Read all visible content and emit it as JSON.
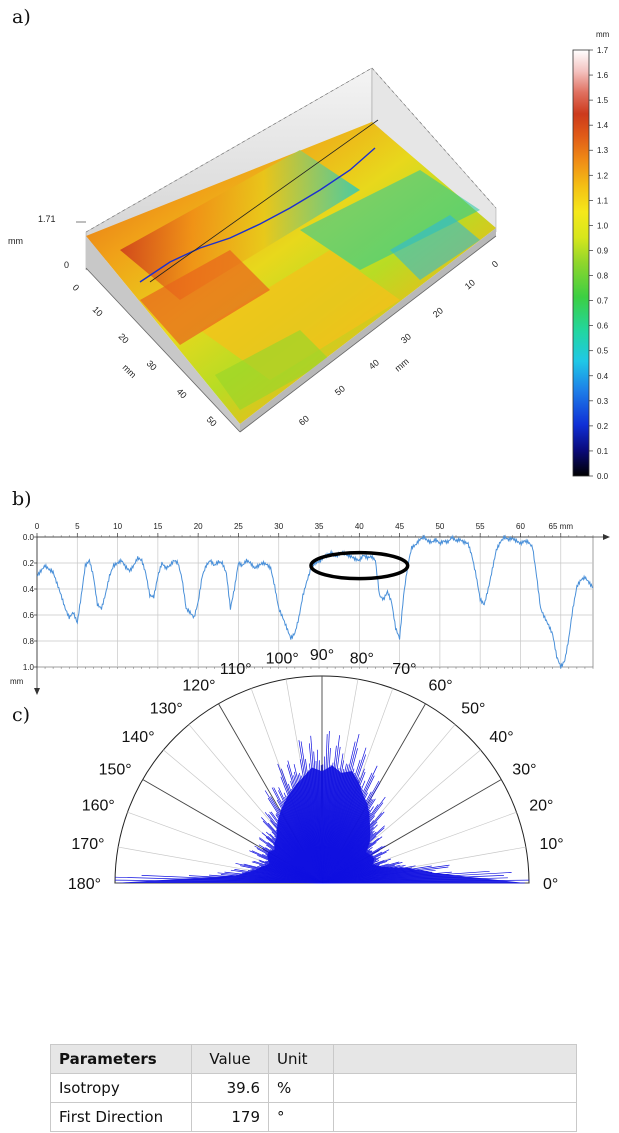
{
  "panels": {
    "a": "a)",
    "b": "b)",
    "c": "c)"
  },
  "colors": {
    "profile_line": "#4a90d9",
    "rose_fill": "#1010e0",
    "grid": "#bdbdbd",
    "highlight_ring": "#000000"
  },
  "chart_data": [
    {
      "type": "heatmap",
      "panel": "a",
      "description_type": "3d-surface",
      "z_max_label": "1.71",
      "z_axis_unit": "mm",
      "z_ticks": [
        "0",
        "1.71"
      ],
      "x_axis_unit": "mm",
      "x_ticks": [
        "0",
        "10",
        "20",
        "30",
        "40",
        "50"
      ],
      "y_axis_unit": "mm",
      "y_ticks": [
        "10",
        "20",
        "30",
        "40",
        "50",
        "60"
      ],
      "colorbar": {
        "unit": "mm",
        "range": [
          0.0,
          1.7
        ],
        "ticks": [
          "1.7",
          "1.6",
          "1.5",
          "1.4",
          "1.3",
          "1.2",
          "1.1",
          "1.0",
          "0.9",
          "0.8",
          "0.7",
          "0.6",
          "0.5",
          "0.4",
          "0.3",
          "0.2",
          "0.1",
          "0.0"
        ],
        "colors": [
          "#000000",
          "#0a0a7a",
          "#0f2fd6",
          "#1e7ee8",
          "#1fc8e6",
          "#22d6a0",
          "#3ccf43",
          "#8fd62c",
          "#d7e61c",
          "#f5e81a",
          "#f4c014",
          "#f08d16",
          "#e05a18",
          "#cc3a1c",
          "#e07060",
          "#f4c2c0",
          "#ffffff"
        ]
      }
    },
    {
      "type": "line",
      "panel": "b",
      "x_unit": "mm",
      "y_unit": "mm",
      "x_ticks": [
        "0",
        "5",
        "10",
        "15",
        "20",
        "25",
        "30",
        "35",
        "40",
        "45",
        "50",
        "55",
        "60",
        "65 mm"
      ],
      "y_ticks": [
        "0.0",
        "0.2",
        "0.4",
        "0.6",
        "0.8",
        "1.0"
      ],
      "xlim": [
        0,
        69
      ],
      "ylim": [
        0.0,
        1.0
      ],
      "y_inverted": true,
      "highlight_region": {
        "x": [
          34,
          46
        ],
        "y": [
          0.12,
          0.32
        ]
      },
      "series": [
        {
          "x": [
            0,
            0.5,
            1,
            1.5,
            2,
            2.5,
            3,
            3.5,
            4,
            4.5,
            5,
            5.5,
            6,
            6.5,
            7,
            7.5,
            8,
            8.5,
            9,
            9.5,
            10,
            10.5,
            11,
            11.5,
            12,
            12.5,
            13,
            13.5,
            14,
            14.5,
            15,
            15.5,
            16,
            16.5,
            17,
            17.5,
            18,
            18.5,
            19,
            19.5,
            20,
            20.5,
            21,
            21.5,
            22,
            22.5,
            23,
            23.5,
            24,
            24.5,
            25,
            25.5,
            26,
            26.5,
            27,
            27.5,
            28,
            28.5,
            29,
            29.5,
            30,
            30.5,
            31,
            31.5,
            32,
            32.5,
            33,
            33.5,
            34,
            34.5,
            35,
            35.5,
            36,
            36.5,
            37,
            37.5,
            38,
            38.5,
            39,
            39.5,
            40,
            40.5,
            41,
            41.5,
            42,
            42.5,
            43,
            43.5,
            44,
            44.5,
            45,
            45.5,
            46,
            46.5,
            47,
            47.5,
            48,
            48.5,
            49,
            49.5,
            50,
            50.5,
            51,
            51.5,
            52,
            52.5,
            53,
            53.5,
            54,
            54.5,
            55,
            55.5,
            56,
            56.5,
            57,
            57.5,
            58,
            58.5,
            59,
            59.5,
            60,
            60.5,
            61,
            61.5,
            62,
            62.5,
            63,
            63.5,
            64,
            64.5,
            65,
            65.5,
            66,
            66.5,
            67,
            67.5,
            68,
            68.5,
            69
          ],
          "y": [
            0.3,
            0.26,
            0.22,
            0.25,
            0.27,
            0.36,
            0.45,
            0.55,
            0.62,
            0.58,
            0.66,
            0.45,
            0.22,
            0.18,
            0.3,
            0.52,
            0.55,
            0.44,
            0.3,
            0.22,
            0.2,
            0.18,
            0.23,
            0.26,
            0.22,
            0.16,
            0.18,
            0.28,
            0.45,
            0.46,
            0.3,
            0.2,
            0.24,
            0.22,
            0.18,
            0.2,
            0.32,
            0.55,
            0.58,
            0.62,
            0.5,
            0.3,
            0.22,
            0.18,
            0.22,
            0.19,
            0.2,
            0.28,
            0.55,
            0.4,
            0.2,
            0.22,
            0.18,
            0.2,
            0.24,
            0.22,
            0.2,
            0.21,
            0.24,
            0.38,
            0.55,
            0.62,
            0.7,
            0.78,
            0.74,
            0.62,
            0.45,
            0.34,
            0.24,
            0.2,
            0.19,
            0.16,
            0.14,
            0.12,
            0.15,
            0.13,
            0.12,
            0.14,
            0.15,
            0.17,
            0.18,
            0.14,
            0.16,
            0.15,
            0.18,
            0.45,
            0.48,
            0.42,
            0.5,
            0.7,
            0.78,
            0.45,
            0.22,
            0.08,
            0.06,
            0.02,
            0.0,
            0.03,
            0.04,
            0.02,
            0.05,
            0.03,
            0.04,
            0.0,
            0.03,
            0.02,
            0.04,
            0.05,
            0.15,
            0.3,
            0.48,
            0.52,
            0.4,
            0.25,
            0.1,
            0.04,
            0.0,
            0.02,
            0.01,
            0.03,
            0.05,
            0.03,
            0.04,
            0.08,
            0.3,
            0.55,
            0.62,
            0.68,
            0.75,
            0.92,
            1.0,
            0.95,
            0.78,
            0.55,
            0.38,
            0.33,
            0.31,
            0.35,
            0.39
          ]
        }
      ]
    },
    {
      "type": "bar",
      "panel": "c",
      "description_type": "polar-rose",
      "angle_ticks": [
        "0°",
        "10°",
        "20°",
        "30°",
        "40°",
        "50°",
        "60°",
        "70°",
        "80°",
        "90°",
        "100°",
        "110°",
        "120°",
        "130°",
        "140°",
        "150°",
        "160°",
        "170°",
        "180°"
      ],
      "theta_range": [
        0,
        180
      ],
      "r_max": 1.0,
      "envelope": {
        "theta": [
          0,
          5,
          10,
          15,
          20,
          25,
          30,
          35,
          40,
          45,
          50,
          55,
          60,
          65,
          70,
          75,
          80,
          85,
          90,
          95,
          100,
          105,
          110,
          115,
          120,
          125,
          130,
          135,
          140,
          145,
          150,
          155,
          160,
          165,
          170,
          175,
          180
        ],
        "r": [
          0.98,
          0.55,
          0.42,
          0.3,
          0.26,
          0.28,
          0.27,
          0.26,
          0.3,
          0.33,
          0.36,
          0.4,
          0.44,
          0.47,
          0.52,
          0.56,
          0.54,
          0.57,
          0.54,
          0.56,
          0.52,
          0.49,
          0.46,
          0.43,
          0.4,
          0.37,
          0.34,
          0.31,
          0.3,
          0.28,
          0.3,
          0.29,
          0.27,
          0.3,
          0.34,
          0.42,
          1.0
        ]
      }
    }
  ],
  "table": {
    "headers": [
      "Parameters",
      "Value",
      "Unit",
      ""
    ],
    "rows": [
      {
        "name": "Isotropy",
        "value": "39.6",
        "unit": "%"
      },
      {
        "name": "First Direction",
        "value": "179",
        "unit": "°"
      }
    ]
  }
}
